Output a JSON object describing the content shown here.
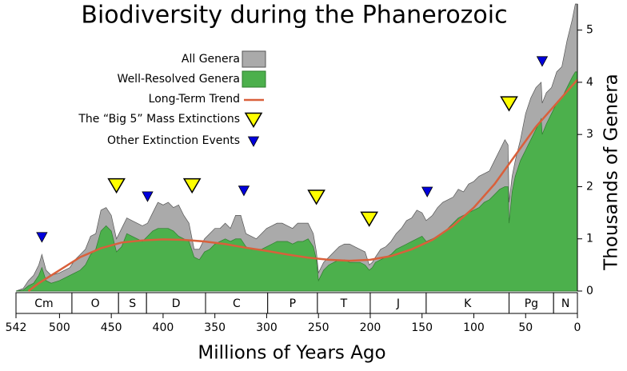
{
  "chart_data": {
    "type": "area",
    "title": "Biodiversity during the Phanerozoic",
    "xlabel": "Millions of Years Ago",
    "ylabel": "Thousands of Genera",
    "xlim": [
      542,
      0
    ],
    "ylim": [
      0,
      5.5
    ],
    "xticks": [
      542,
      500,
      450,
      400,
      350,
      300,
      250,
      200,
      150,
      100,
      50,
      0
    ],
    "yticks": [
      0,
      1,
      2,
      3,
      4,
      5
    ],
    "x": [
      542,
      535,
      530,
      525,
      520,
      517,
      513,
      508,
      500,
      495,
      490,
      485,
      480,
      475,
      470,
      465,
      460,
      455,
      450,
      445,
      440,
      435,
      430,
      425,
      420,
      415,
      410,
      405,
      400,
      395,
      390,
      385,
      380,
      375,
      370,
      365,
      360,
      355,
      350,
      345,
      340,
      335,
      330,
      325,
      320,
      315,
      310,
      305,
      300,
      295,
      290,
      285,
      280,
      275,
      270,
      265,
      260,
      255,
      252,
      250,
      245,
      240,
      235,
      230,
      225,
      220,
      215,
      210,
      205,
      201,
      198,
      195,
      190,
      185,
      180,
      175,
      170,
      165,
      160,
      155,
      150,
      146,
      140,
      135,
      130,
      125,
      120,
      115,
      110,
      105,
      100,
      95,
      90,
      85,
      80,
      75,
      70,
      67,
      66,
      63,
      60,
      55,
      50,
      45,
      40,
      35,
      34,
      30,
      25,
      20,
      15,
      10,
      5,
      2,
      0
    ],
    "series": [
      {
        "name": "All Genera",
        "type": "area",
        "color": "#aaaaaa",
        "values": [
          0,
          0.05,
          0.2,
          0.3,
          0.5,
          0.7,
          0.4,
          0.3,
          0.35,
          0.4,
          0.45,
          0.6,
          0.7,
          0.8,
          1.05,
          1.1,
          1.55,
          1.6,
          1.45,
          1.0,
          1.2,
          1.4,
          1.35,
          1.3,
          1.25,
          1.3,
          1.5,
          1.7,
          1.65,
          1.7,
          1.6,
          1.65,
          1.45,
          1.3,
          0.8,
          0.8,
          1.0,
          1.1,
          1.2,
          1.2,
          1.3,
          1.2,
          1.45,
          1.45,
          1.1,
          1.05,
          1.0,
          1.1,
          1.2,
          1.25,
          1.3,
          1.3,
          1.25,
          1.2,
          1.3,
          1.3,
          1.3,
          1.1,
          0.75,
          0.35,
          0.55,
          0.65,
          0.75,
          0.85,
          0.9,
          0.9,
          0.85,
          0.8,
          0.75,
          0.5,
          0.55,
          0.65,
          0.8,
          0.85,
          0.95,
          1.1,
          1.2,
          1.35,
          1.4,
          1.55,
          1.5,
          1.35,
          1.45,
          1.6,
          1.7,
          1.75,
          1.8,
          1.95,
          1.9,
          2.05,
          2.1,
          2.2,
          2.25,
          2.3,
          2.5,
          2.7,
          2.9,
          2.8,
          1.7,
          2.2,
          2.5,
          2.9,
          3.4,
          3.7,
          3.9,
          4.0,
          3.6,
          3.8,
          3.9,
          4.2,
          4.3,
          4.8,
          5.2,
          5.5,
          5.5
        ]
      },
      {
        "name": "Well-Resolved Genera",
        "type": "area",
        "color": "#4cb04c",
        "values": [
          0,
          0.02,
          0.1,
          0.15,
          0.3,
          0.45,
          0.2,
          0.15,
          0.2,
          0.25,
          0.3,
          0.35,
          0.4,
          0.5,
          0.7,
          0.8,
          1.15,
          1.25,
          1.15,
          0.75,
          0.85,
          1.1,
          1.05,
          1.0,
          0.95,
          1.05,
          1.15,
          1.2,
          1.2,
          1.2,
          1.15,
          1.05,
          1.0,
          0.95,
          0.65,
          0.6,
          0.75,
          0.8,
          0.9,
          0.95,
          1.0,
          0.95,
          1.0,
          1.0,
          0.85,
          0.8,
          0.8,
          0.8,
          0.85,
          0.9,
          0.95,
          0.95,
          0.95,
          0.9,
          0.95,
          0.95,
          1.0,
          0.85,
          0.6,
          0.2,
          0.4,
          0.5,
          0.55,
          0.6,
          0.6,
          0.55,
          0.55,
          0.55,
          0.5,
          0.4,
          0.45,
          0.55,
          0.6,
          0.65,
          0.7,
          0.8,
          0.85,
          0.9,
          0.95,
          1.0,
          1.05,
          0.95,
          1.0,
          1.05,
          1.1,
          1.2,
          1.3,
          1.4,
          1.45,
          1.5,
          1.55,
          1.6,
          1.7,
          1.75,
          1.85,
          1.95,
          2.0,
          2.0,
          1.3,
          1.9,
          2.2,
          2.5,
          2.7,
          2.9,
          3.1,
          3.3,
          3.0,
          3.2,
          3.4,
          3.6,
          3.7,
          3.9,
          4.1,
          4.2,
          4.2
        ]
      },
      {
        "name": "Long-Term Trend",
        "type": "line",
        "color": "#d9603b",
        "x": [
          530,
          520,
          500,
          480,
          460,
          440,
          420,
          400,
          380,
          360,
          340,
          320,
          300,
          280,
          260,
          240,
          220,
          200,
          180,
          160,
          140,
          120,
          100,
          80,
          60,
          40,
          20,
          0
        ],
        "values": [
          0,
          0.15,
          0.4,
          0.65,
          0.82,
          0.93,
          0.97,
          0.99,
          0.98,
          0.95,
          0.9,
          0.83,
          0.77,
          0.7,
          0.64,
          0.6,
          0.58,
          0.6,
          0.67,
          0.8,
          0.98,
          1.25,
          1.6,
          2.05,
          2.6,
          3.15,
          3.6,
          4.05
        ]
      },
      {
        "name": "The “Big 5” Mass Extinctions",
        "type": "scatter",
        "marker": "large",
        "color": "#ffff00",
        "x": [
          445,
          372,
          252,
          201,
          66
        ],
        "values": [
          2.02,
          2.02,
          1.8,
          1.38,
          3.59
        ]
      },
      {
        "name": "Other Extinction Events",
        "type": "scatter",
        "marker": "small",
        "color": "#0000dd",
        "x": [
          517,
          415,
          322,
          145,
          34
        ],
        "values": [
          1.03,
          1.81,
          1.92,
          1.9,
          4.4
        ]
      }
    ],
    "periods": [
      {
        "label": "Cm",
        "start": 542,
        "end": 488
      },
      {
        "label": "O",
        "start": 488,
        "end": 443
      },
      {
        "label": "S",
        "start": 443,
        "end": 416
      },
      {
        "label": "D",
        "start": 416,
        "end": 359
      },
      {
        "label": "C",
        "start": 359,
        "end": 299
      },
      {
        "label": "P",
        "start": 299,
        "end": 251
      },
      {
        "label": "T",
        "start": 251,
        "end": 200
      },
      {
        "label": "J",
        "start": 200,
        "end": 146
      },
      {
        "label": "K",
        "start": 146,
        "end": 66
      },
      {
        "label": "Pg",
        "start": 66,
        "end": 23
      },
      {
        "label": "N",
        "start": 23,
        "end": 0
      }
    ]
  }
}
